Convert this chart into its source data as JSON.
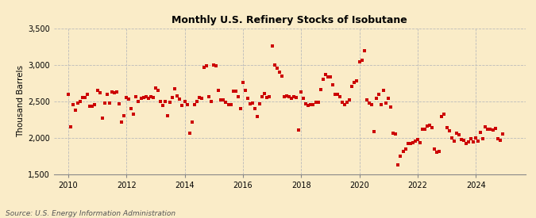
{
  "title": "Monthly U.S. Refinery Stocks of Isobutane",
  "ylabel": "Thousand Barrels",
  "source": "Source: U.S. Energy Information Administration",
  "background_color": "#faecc8",
  "dot_color": "#cc0000",
  "grid_color": "#bbbbbb",
  "ylim": [
    1500,
    3500
  ],
  "yticks": [
    1500,
    2000,
    2500,
    3000,
    3500
  ],
  "ytick_labels": [
    "1,500",
    "2,000",
    "2,500",
    "3,000",
    "3,500"
  ],
  "xlim_start": 2009.5,
  "xlim_end": 2025.7,
  "xticks": [
    2010,
    2012,
    2014,
    2016,
    2018,
    2020,
    2022,
    2024
  ],
  "data": [
    [
      2010.0,
      2600
    ],
    [
      2010.083,
      2150
    ],
    [
      2010.167,
      2450
    ],
    [
      2010.25,
      2380
    ],
    [
      2010.333,
      2480
    ],
    [
      2010.417,
      2500
    ],
    [
      2010.5,
      2550
    ],
    [
      2010.583,
      2550
    ],
    [
      2010.667,
      2600
    ],
    [
      2010.75,
      2430
    ],
    [
      2010.833,
      2430
    ],
    [
      2010.917,
      2460
    ],
    [
      2011.0,
      2650
    ],
    [
      2011.083,
      2620
    ],
    [
      2011.167,
      2270
    ],
    [
      2011.25,
      2480
    ],
    [
      2011.333,
      2600
    ],
    [
      2011.417,
      2480
    ],
    [
      2011.5,
      2630
    ],
    [
      2011.583,
      2620
    ],
    [
      2011.667,
      2630
    ],
    [
      2011.75,
      2470
    ],
    [
      2011.833,
      2220
    ],
    [
      2011.917,
      2300
    ],
    [
      2012.0,
      2550
    ],
    [
      2012.083,
      2530
    ],
    [
      2012.167,
      2400
    ],
    [
      2012.25,
      2320
    ],
    [
      2012.333,
      2560
    ],
    [
      2012.417,
      2500
    ],
    [
      2012.5,
      2540
    ],
    [
      2012.583,
      2550
    ],
    [
      2012.667,
      2560
    ],
    [
      2012.75,
      2540
    ],
    [
      2012.833,
      2560
    ],
    [
      2012.917,
      2550
    ],
    [
      2013.0,
      2680
    ],
    [
      2013.083,
      2650
    ],
    [
      2013.167,
      2500
    ],
    [
      2013.25,
      2440
    ],
    [
      2013.333,
      2500
    ],
    [
      2013.417,
      2300
    ],
    [
      2013.5,
      2490
    ],
    [
      2013.583,
      2550
    ],
    [
      2013.667,
      2670
    ],
    [
      2013.75,
      2570
    ],
    [
      2013.833,
      2530
    ],
    [
      2013.917,
      2440
    ],
    [
      2014.0,
      2500
    ],
    [
      2014.083,
      2450
    ],
    [
      2014.167,
      2060
    ],
    [
      2014.25,
      2220
    ],
    [
      2014.333,
      2450
    ],
    [
      2014.417,
      2500
    ],
    [
      2014.5,
      2550
    ],
    [
      2014.583,
      2540
    ],
    [
      2014.667,
      2960
    ],
    [
      2014.75,
      2990
    ],
    [
      2014.833,
      2560
    ],
    [
      2014.917,
      2500
    ],
    [
      2015.0,
      3000
    ],
    [
      2015.083,
      2990
    ],
    [
      2015.167,
      2650
    ],
    [
      2015.25,
      2520
    ],
    [
      2015.333,
      2520
    ],
    [
      2015.417,
      2490
    ],
    [
      2015.5,
      2450
    ],
    [
      2015.583,
      2460
    ],
    [
      2015.667,
      2640
    ],
    [
      2015.75,
      2640
    ],
    [
      2015.833,
      2560
    ],
    [
      2015.917,
      2400
    ],
    [
      2016.0,
      2760
    ],
    [
      2016.083,
      2650
    ],
    [
      2016.167,
      2540
    ],
    [
      2016.25,
      2470
    ],
    [
      2016.333,
      2480
    ],
    [
      2016.417,
      2400
    ],
    [
      2016.5,
      2290
    ],
    [
      2016.583,
      2470
    ],
    [
      2016.667,
      2560
    ],
    [
      2016.75,
      2610
    ],
    [
      2016.833,
      2550
    ],
    [
      2016.917,
      2560
    ],
    [
      2017.0,
      3260
    ],
    [
      2017.083,
      3000
    ],
    [
      2017.167,
      2950
    ],
    [
      2017.25,
      2900
    ],
    [
      2017.333,
      2850
    ],
    [
      2017.417,
      2560
    ],
    [
      2017.5,
      2580
    ],
    [
      2017.583,
      2560
    ],
    [
      2017.667,
      2540
    ],
    [
      2017.75,
      2560
    ],
    [
      2017.833,
      2550
    ],
    [
      2017.917,
      2110
    ],
    [
      2018.0,
      2630
    ],
    [
      2018.083,
      2540
    ],
    [
      2018.167,
      2470
    ],
    [
      2018.25,
      2440
    ],
    [
      2018.333,
      2450
    ],
    [
      2018.417,
      2460
    ],
    [
      2018.5,
      2490
    ],
    [
      2018.583,
      2490
    ],
    [
      2018.667,
      2660
    ],
    [
      2018.75,
      2800
    ],
    [
      2018.833,
      2870
    ],
    [
      2018.917,
      2840
    ],
    [
      2019.0,
      2830
    ],
    [
      2019.083,
      2730
    ],
    [
      2019.167,
      2600
    ],
    [
      2019.25,
      2600
    ],
    [
      2019.333,
      2560
    ],
    [
      2019.417,
      2490
    ],
    [
      2019.5,
      2460
    ],
    [
      2019.583,
      2490
    ],
    [
      2019.667,
      2520
    ],
    [
      2019.75,
      2700
    ],
    [
      2019.833,
      2760
    ],
    [
      2019.917,
      2780
    ],
    [
      2020.0,
      3040
    ],
    [
      2020.083,
      3060
    ],
    [
      2020.167,
      3190
    ],
    [
      2020.25,
      2520
    ],
    [
      2020.333,
      2480
    ],
    [
      2020.417,
      2460
    ],
    [
      2020.5,
      2090
    ],
    [
      2020.583,
      2540
    ],
    [
      2020.667,
      2600
    ],
    [
      2020.75,
      2450
    ],
    [
      2020.833,
      2650
    ],
    [
      2020.917,
      2480
    ],
    [
      2021.0,
      2540
    ],
    [
      2021.083,
      2420
    ],
    [
      2021.167,
      2060
    ],
    [
      2021.25,
      2050
    ],
    [
      2021.333,
      1630
    ],
    [
      2021.417,
      1750
    ],
    [
      2021.5,
      1820
    ],
    [
      2021.583,
      1850
    ],
    [
      2021.667,
      1920
    ],
    [
      2021.75,
      1920
    ],
    [
      2021.833,
      1930
    ],
    [
      2021.917,
      1960
    ],
    [
      2022.0,
      1980
    ],
    [
      2022.083,
      1930
    ],
    [
      2022.167,
      2120
    ],
    [
      2022.25,
      2120
    ],
    [
      2022.333,
      2160
    ],
    [
      2022.417,
      2170
    ],
    [
      2022.5,
      2140
    ],
    [
      2022.583,
      1850
    ],
    [
      2022.667,
      1800
    ],
    [
      2022.75,
      1810
    ],
    [
      2022.833,
      2290
    ],
    [
      2022.917,
      2330
    ],
    [
      2023.0,
      2140
    ],
    [
      2023.083,
      2100
    ],
    [
      2023.167,
      2000
    ],
    [
      2023.25,
      1960
    ],
    [
      2023.333,
      2060
    ],
    [
      2023.417,
      2040
    ],
    [
      2023.5,
      1980
    ],
    [
      2023.583,
      1970
    ],
    [
      2023.667,
      1920
    ],
    [
      2023.75,
      1950
    ],
    [
      2023.833,
      1990
    ],
    [
      2023.917,
      1950
    ],
    [
      2024.0,
      2000
    ],
    [
      2024.083,
      1960
    ],
    [
      2024.167,
      2070
    ],
    [
      2024.25,
      1990
    ],
    [
      2024.333,
      2150
    ],
    [
      2024.417,
      2120
    ],
    [
      2024.5,
      2120
    ],
    [
      2024.583,
      2110
    ],
    [
      2024.667,
      2130
    ],
    [
      2024.75,
      1990
    ],
    [
      2024.833,
      1970
    ],
    [
      2024.917,
      2050
    ]
  ]
}
